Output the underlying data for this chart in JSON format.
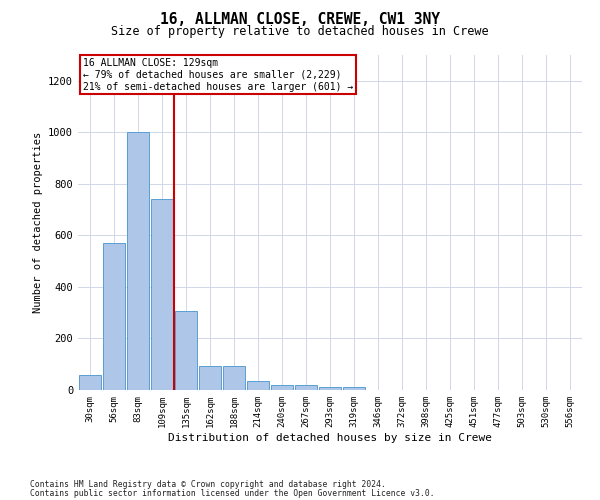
{
  "title": "16, ALLMAN CLOSE, CREWE, CW1 3NY",
  "subtitle": "Size of property relative to detached houses in Crewe",
  "xlabel": "Distribution of detached houses by size in Crewe",
  "ylabel": "Number of detached properties",
  "bin_labels": [
    "30sqm",
    "56sqm",
    "83sqm",
    "109sqm",
    "135sqm",
    "162sqm",
    "188sqm",
    "214sqm",
    "240sqm",
    "267sqm",
    "293sqm",
    "319sqm",
    "346sqm",
    "372sqm",
    "398sqm",
    "425sqm",
    "451sqm",
    "477sqm",
    "503sqm",
    "530sqm",
    "556sqm"
  ],
  "bar_heights": [
    60,
    570,
    1000,
    740,
    305,
    95,
    95,
    35,
    20,
    20,
    10,
    10,
    0,
    0,
    0,
    0,
    0,
    0,
    0,
    0,
    0
  ],
  "bar_color": "#aec6e8",
  "bar_edge_color": "#5a9fd4",
  "red_line_bin_index": 4,
  "annotation_line1": "16 ALLMAN CLOSE: 129sqm",
  "annotation_line2": "← 79% of detached houses are smaller (2,229)",
  "annotation_line3": "21% of semi-detached houses are larger (601) →",
  "ylim": [
    0,
    1300
  ],
  "yticks": [
    0,
    200,
    400,
    600,
    800,
    1000,
    1200
  ],
  "footer_line1": "Contains HM Land Registry data © Crown copyright and database right 2024.",
  "footer_line2": "Contains public sector information licensed under the Open Government Licence v3.0.",
  "background_color": "#ffffff",
  "grid_color": "#d0d8e8"
}
